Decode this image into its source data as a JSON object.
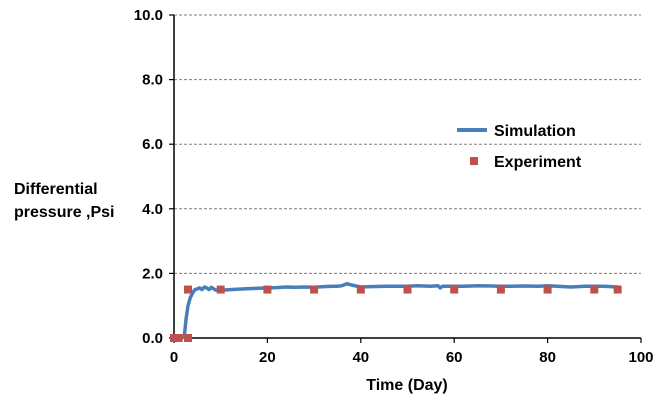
{
  "chart_data": {
    "type": "line",
    "title": "",
    "xlabel": "Time (Day)",
    "ylabel_lines": [
      "Differential",
      "pressure ,Psi"
    ],
    "xlim": [
      0,
      100
    ],
    "ylim": [
      0,
      10
    ],
    "xticks": [
      "0",
      "20",
      "40",
      "60",
      "80",
      "100"
    ],
    "yticks": [
      "0.0",
      "2.0",
      "4.0",
      "6.0",
      "8.0",
      "10.0"
    ],
    "grid": "horizontal dashed",
    "legend_position": "right",
    "series": [
      {
        "name": "Simulation",
        "kind": "line",
        "color": "#4a7ebb",
        "x": [
          0,
          1.5,
          2.2,
          2.6,
          3.0,
          3.5,
          4.0,
          4.5,
          5.0,
          5.5,
          6.0,
          6.5,
          7.0,
          7.5,
          8.0,
          8.5,
          9.0,
          9.5,
          10,
          12,
          15,
          18,
          20,
          22,
          24,
          26,
          28,
          30,
          32,
          34,
          35,
          36,
          37,
          38,
          40,
          42,
          45,
          48,
          50,
          52,
          55,
          56.5,
          57,
          57.5,
          60,
          62,
          65,
          68,
          70,
          72,
          75,
          78,
          80,
          82,
          85,
          88,
          90,
          92,
          95
        ],
        "y": [
          0.0,
          0.0,
          0.05,
          0.6,
          1.0,
          1.25,
          1.4,
          1.5,
          1.52,
          1.55,
          1.5,
          1.58,
          1.55,
          1.5,
          1.57,
          1.52,
          1.48,
          1.5,
          1.48,
          1.5,
          1.52,
          1.54,
          1.55,
          1.56,
          1.58,
          1.57,
          1.58,
          1.57,
          1.59,
          1.6,
          1.6,
          1.62,
          1.68,
          1.64,
          1.58,
          1.59,
          1.6,
          1.6,
          1.6,
          1.62,
          1.6,
          1.62,
          1.55,
          1.6,
          1.6,
          1.6,
          1.62,
          1.61,
          1.6,
          1.6,
          1.61,
          1.6,
          1.62,
          1.6,
          1.58,
          1.6,
          1.6,
          1.6,
          1.58
        ]
      },
      {
        "name": "Experiment",
        "kind": "scatter",
        "color": "#c0504d",
        "x": [
          0,
          1,
          3,
          10,
          20,
          30,
          40,
          50,
          60,
          70,
          80,
          90,
          95
        ],
        "y": [
          0.0,
          0.0,
          0.0,
          1.5,
          1.5,
          1.5,
          1.5,
          1.5,
          1.5,
          1.5,
          1.5,
          1.5,
          1.5
        ],
        "extra_points": [
          {
            "x": 3,
            "y": 1.5
          }
        ]
      }
    ]
  }
}
